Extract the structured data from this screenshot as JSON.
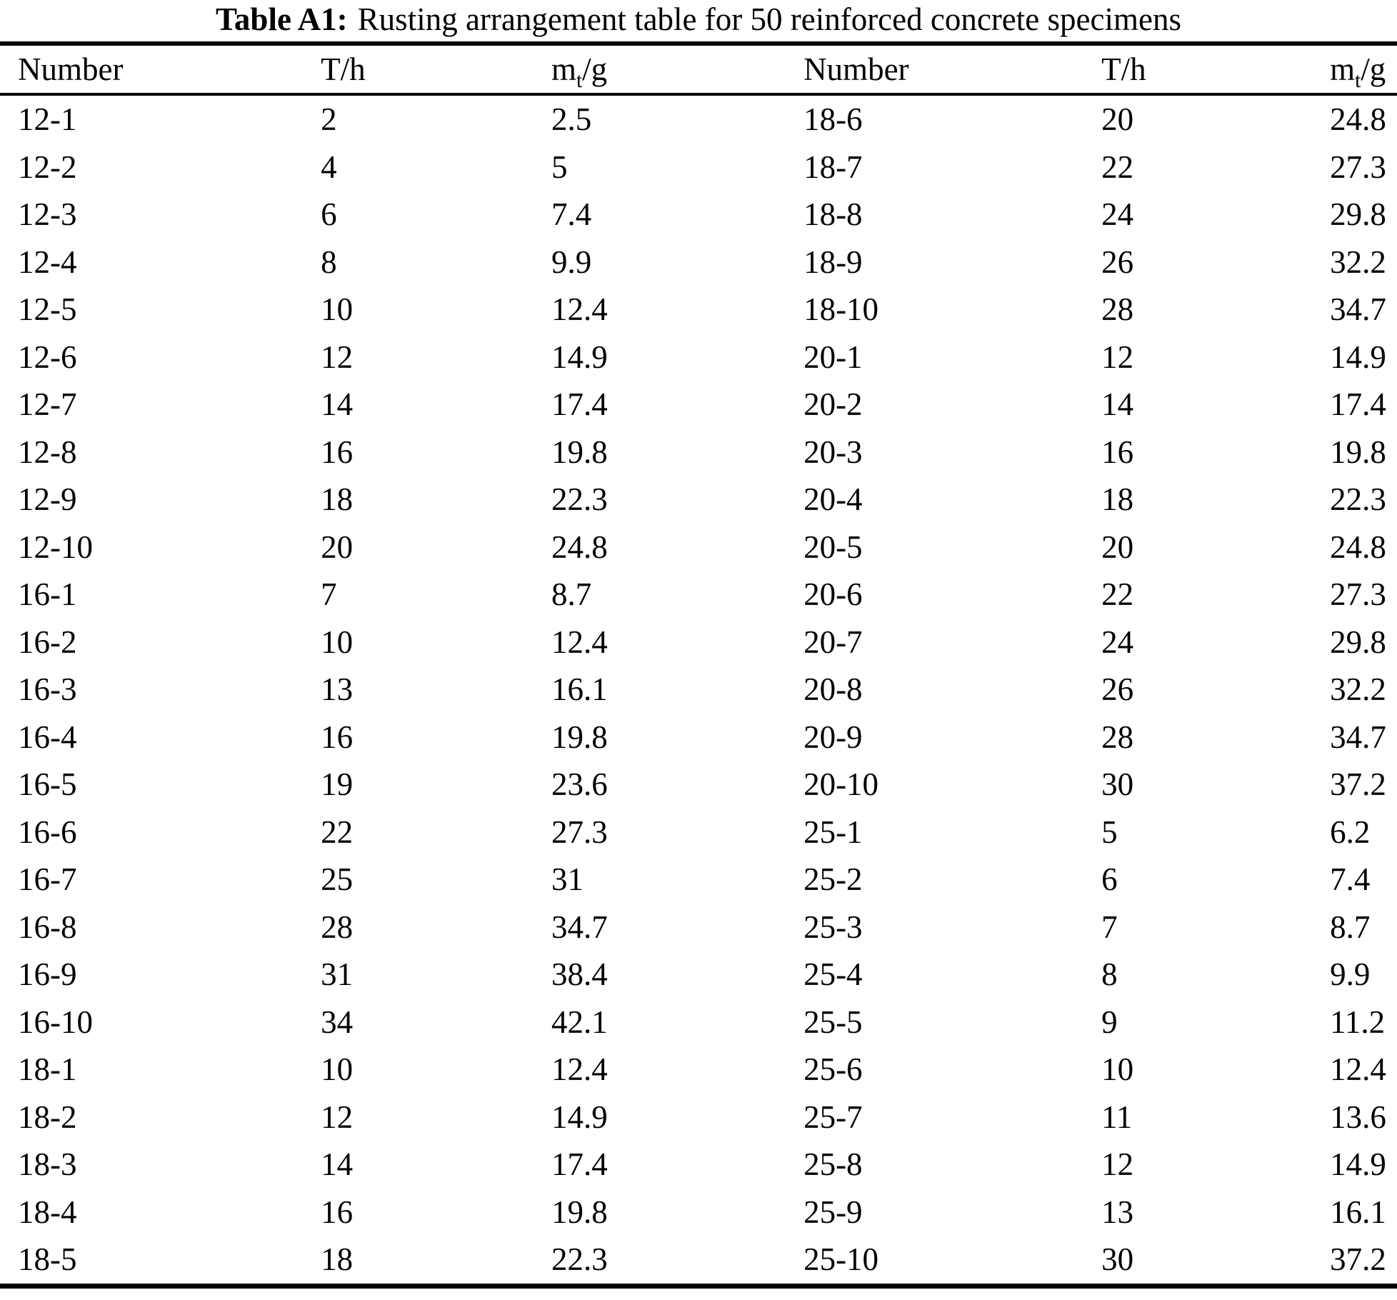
{
  "title": {
    "label": "Table A1:",
    "text": "Rusting arrangement table for 50 reinforced concrete specimens"
  },
  "columns": {
    "number": "Number",
    "time": "T/h",
    "mass_base": "m",
    "mass_sub": "t",
    "mass_suffix": "/g"
  },
  "table": {
    "rows": [
      [
        "12-1",
        "2",
        "2.5",
        "18-6",
        "20",
        "24.8"
      ],
      [
        "12-2",
        "4",
        "5",
        "18-7",
        "22",
        "27.3"
      ],
      [
        "12-3",
        "6",
        "7.4",
        "18-8",
        "24",
        "29.8"
      ],
      [
        "12-4",
        "8",
        "9.9",
        "18-9",
        "26",
        "32.2"
      ],
      [
        "12-5",
        "10",
        "12.4",
        "18-10",
        "28",
        "34.7"
      ],
      [
        "12-6",
        "12",
        "14.9",
        "20-1",
        "12",
        "14.9"
      ],
      [
        "12-7",
        "14",
        "17.4",
        "20-2",
        "14",
        "17.4"
      ],
      [
        "12-8",
        "16",
        "19.8",
        "20-3",
        "16",
        "19.8"
      ],
      [
        "12-9",
        "18",
        "22.3",
        "20-4",
        "18",
        "22.3"
      ],
      [
        "12-10",
        "20",
        "24.8",
        "20-5",
        "20",
        "24.8"
      ],
      [
        "16-1",
        "7",
        "8.7",
        "20-6",
        "22",
        "27.3"
      ],
      [
        "16-2",
        "10",
        "12.4",
        "20-7",
        "24",
        "29.8"
      ],
      [
        "16-3",
        "13",
        "16.1",
        "20-8",
        "26",
        "32.2"
      ],
      [
        "16-4",
        "16",
        "19.8",
        "20-9",
        "28",
        "34.7"
      ],
      [
        "16-5",
        "19",
        "23.6",
        "20-10",
        "30",
        "37.2"
      ],
      [
        "16-6",
        "22",
        "27.3",
        "25-1",
        "5",
        "6.2"
      ],
      [
        "16-7",
        "25",
        "31",
        "25-2",
        "6",
        "7.4"
      ],
      [
        "16-8",
        "28",
        "34.7",
        "25-3",
        "7",
        "8.7"
      ],
      [
        "16-9",
        "31",
        "38.4",
        "25-4",
        "8",
        "9.9"
      ],
      [
        "16-10",
        "34",
        "42.1",
        "25-5",
        "9",
        "11.2"
      ],
      [
        "18-1",
        "10",
        "12.4",
        "25-6",
        "10",
        "12.4"
      ],
      [
        "18-2",
        "12",
        "14.9",
        "25-7",
        "11",
        "13.6"
      ],
      [
        "18-3",
        "14",
        "17.4",
        "25-8",
        "12",
        "14.9"
      ],
      [
        "18-4",
        "16",
        "19.8",
        "25-9",
        "13",
        "16.1"
      ],
      [
        "18-5",
        "18",
        "22.3",
        "25-10",
        "30",
        "37.2"
      ]
    ]
  }
}
